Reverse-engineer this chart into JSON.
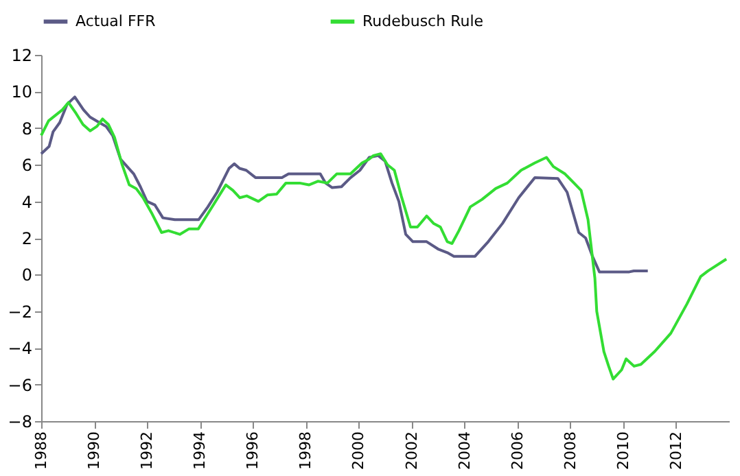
{
  "chart_data": {
    "type": "line",
    "xlim": [
      1988,
      2014
    ],
    "xticks": [
      1988,
      1990,
      1992,
      1994,
      1996,
      1998,
      2000,
      2002,
      2004,
      2006,
      2008,
      2010,
      2012
    ],
    "ylim": [
      -8,
      12
    ],
    "yticks": [
      -8,
      -6,
      -4,
      -2,
      0,
      2,
      4,
      6,
      8,
      10,
      12
    ],
    "grid": false,
    "legend": "top",
    "marker": "none",
    "line_style": "solid",
    "series": [
      {
        "name": "Actual FFR",
        "color": "#5b5a86",
        "x": [
          1988.0,
          1988.3,
          1988.45,
          1988.7,
          1988.98,
          1989.27,
          1989.6,
          1989.85,
          1990.2,
          1990.45,
          1990.7,
          1991.0,
          1991.25,
          1991.5,
          1991.75,
          1992.0,
          1992.3,
          1992.6,
          1993.05,
          1993.95,
          1994.3,
          1994.65,
          1995.1,
          1995.3,
          1995.5,
          1995.75,
          1996.1,
          1997.1,
          1997.35,
          1998.55,
          1998.75,
          1999.0,
          1999.35,
          1999.7,
          2000.05,
          2000.4,
          2000.74,
          2001.0,
          2001.26,
          2001.52,
          2001.78,
          2002.05,
          2002.57,
          2003.0,
          2003.35,
          2003.6,
          2004.4,
          2004.9,
          2005.44,
          2006.05,
          2006.66,
          2007.53,
          2007.88,
          2008.32,
          2008.58,
          2008.84,
          2009.1,
          2010.23,
          2010.4,
          2010.93
        ],
        "values": [
          6.6,
          7.0,
          7.8,
          8.3,
          9.3,
          9.7,
          9.0,
          8.6,
          8.3,
          8.1,
          7.6,
          6.3,
          5.9,
          5.5,
          4.8,
          4.0,
          3.8,
          3.1,
          3.0,
          3.0,
          3.7,
          4.5,
          5.8,
          6.05,
          5.8,
          5.7,
          5.3,
          5.3,
          5.5,
          5.5,
          5.0,
          4.75,
          4.8,
          5.3,
          5.7,
          6.4,
          6.5,
          6.2,
          5.0,
          4.0,
          2.2,
          1.8,
          1.8,
          1.4,
          1.2,
          1.0,
          1.0,
          1.8,
          2.8,
          4.2,
          5.3,
          5.25,
          4.5,
          2.3,
          2.0,
          1.0,
          0.15,
          0.15,
          0.2,
          0.2
        ]
      },
      {
        "name": "Rudebusch Rule",
        "color": "#33dd33",
        "x": [
          1988.0,
          1988.28,
          1988.54,
          1988.8,
          1989.03,
          1989.32,
          1989.58,
          1989.85,
          1990.11,
          1990.32,
          1990.54,
          1990.77,
          1991.06,
          1991.33,
          1991.59,
          1991.85,
          1992.2,
          1992.55,
          1992.81,
          1993.24,
          1993.59,
          1993.94,
          1994.29,
          1994.72,
          1994.98,
          1995.25,
          1995.51,
          1995.77,
          1996.21,
          1996.55,
          1996.9,
          1997.25,
          1997.77,
          1998.12,
          1998.47,
          1998.82,
          1999.17,
          1999.69,
          2000.13,
          2000.39,
          2000.56,
          2000.83,
          2001.09,
          2001.35,
          2001.61,
          2001.96,
          2002.22,
          2002.57,
          2002.83,
          2003.09,
          2003.35,
          2003.53,
          2003.79,
          2004.22,
          2004.66,
          2005.18,
          2005.62,
          2006.14,
          2006.66,
          2007.1,
          2007.36,
          2007.8,
          2008.14,
          2008.41,
          2008.67,
          2008.93,
          2009.0,
          2009.27,
          2009.45,
          2009.62,
          2009.94,
          2010.11,
          2010.41,
          2010.67,
          2011.19,
          2011.8,
          2012.41,
          2012.93,
          2013.2,
          2013.9
        ],
        "values": [
          7.6,
          8.4,
          8.7,
          9.0,
          9.4,
          8.8,
          8.2,
          7.85,
          8.1,
          8.5,
          8.2,
          7.5,
          6.0,
          4.9,
          4.7,
          4.2,
          3.3,
          2.3,
          2.4,
          2.2,
          2.5,
          2.5,
          3.3,
          4.3,
          4.9,
          4.6,
          4.2,
          4.3,
          4.0,
          4.35,
          4.4,
          5.0,
          5.0,
          4.9,
          5.1,
          5.0,
          5.5,
          5.5,
          6.1,
          6.3,
          6.5,
          6.6,
          6.0,
          5.7,
          4.3,
          2.6,
          2.6,
          3.2,
          2.8,
          2.6,
          1.8,
          1.7,
          2.4,
          3.7,
          4.1,
          4.7,
          5.0,
          5.7,
          6.1,
          6.4,
          5.9,
          5.5,
          5.0,
          4.6,
          3.0,
          -0.2,
          -2.0,
          -4.2,
          -5.0,
          -5.7,
          -5.2,
          -4.6,
          -5.0,
          -4.9,
          -4.2,
          -3.2,
          -1.6,
          -0.1,
          0.2,
          0.85
        ]
      }
    ]
  }
}
